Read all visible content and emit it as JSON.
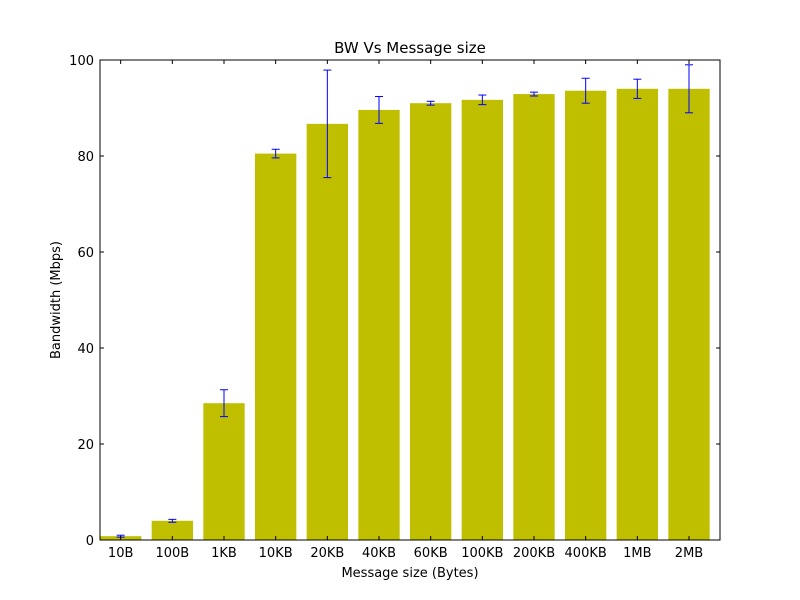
{
  "chart_data": {
    "type": "bar",
    "title": "BW Vs Message size",
    "xlabel": "Message size (Bytes)",
    "ylabel": "Bandwidth (Mbps)",
    "categories": [
      "10B",
      "100B",
      "1KB",
      "10KB",
      "20KB",
      "40KB",
      "60KB",
      "100KB",
      "200KB",
      "400KB",
      "1MB",
      "2MB"
    ],
    "values": [
      0.8,
      4.0,
      28.5,
      80.5,
      86.7,
      89.6,
      91.0,
      91.7,
      92.9,
      93.6,
      94.0,
      94.0
    ],
    "errors": [
      0.2,
      0.3,
      2.8,
      0.9,
      11.2,
      2.8,
      0.4,
      1.0,
      0.4,
      2.6,
      2.0,
      5.0
    ],
    "ylim": [
      0,
      100
    ],
    "yticks": [
      0,
      20,
      40,
      60,
      80,
      100
    ],
    "grid": false,
    "colors": {
      "bar": "#bfbf00",
      "error": "#0000ff",
      "axis": "#000000"
    }
  }
}
